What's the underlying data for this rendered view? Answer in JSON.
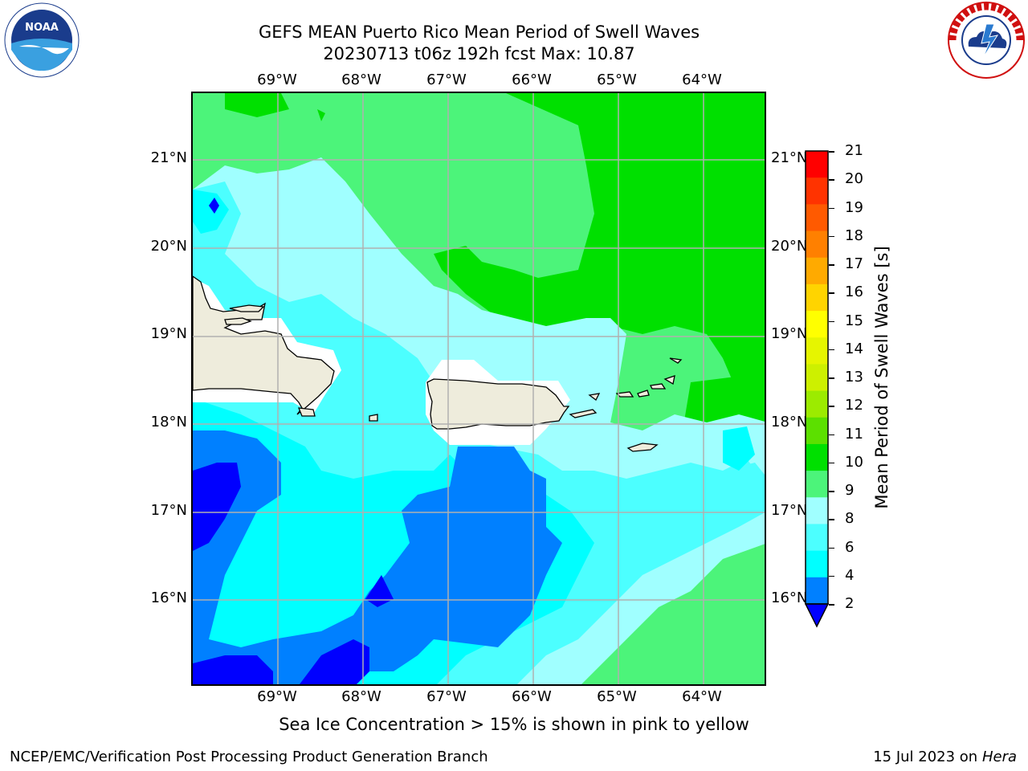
{
  "title_line1": "GEFS MEAN Puerto Rico Mean Period of Swell Waves",
  "title_line2": "20230713 t06z 192h fcst   Max: 10.87",
  "lon_labels": [
    "69°W",
    "68°W",
    "67°W",
    "66°W",
    "65°W",
    "64°W"
  ],
  "lat_labels": [
    "21°N",
    "20°N",
    "19°N",
    "18°N",
    "17°N",
    "16°N"
  ],
  "colorbar": {
    "label": "Mean Period of Swell Waves [s]",
    "ticks": [
      "21",
      "20",
      "19",
      "18",
      "17",
      "16",
      "15",
      "14",
      "13",
      "12",
      "11",
      "10",
      "9",
      "8",
      "6",
      "4",
      "2"
    ],
    "colors": [
      "#ff0000",
      "#ff3300",
      "#ff5a00",
      "#ff8000",
      "#ffaa00",
      "#ffd400",
      "#ffff00",
      "#e6f500",
      "#cdf000",
      "#9ceb00",
      "#5ce000",
      "#00e000",
      "#4cf47a",
      "#a0ffff",
      "#4cffff",
      "#00ffff",
      "#0080ff"
    ],
    "under_color": "#0000ff"
  },
  "subtitle": "Sea Ice Concentration > 15% is shown in pink to yellow",
  "footer_left": "NCEP/EMC/Verification Post Processing Product Generation Branch",
  "footer_right_prefix": "15 Jul 2023 on ",
  "footer_right_host": "Hera",
  "logos": {
    "left": "NOAA",
    "right": "NATIONAL WEATHER SERVICE"
  }
}
